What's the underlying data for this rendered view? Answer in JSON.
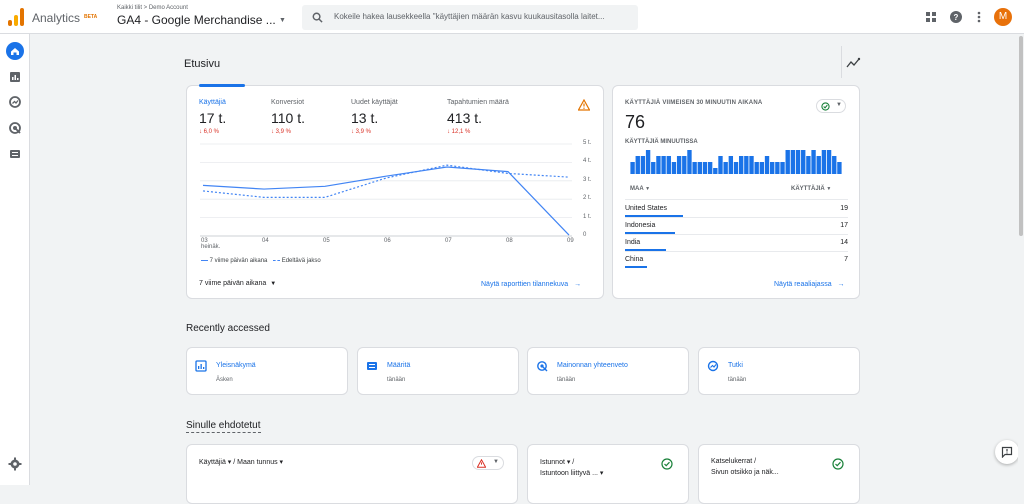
{
  "header": {
    "app_name": "Analytics",
    "beta": "BETA",
    "breadcrumb": "Kaikki tilit > Demo Account",
    "property": "GA4 - Google Merchandise ...",
    "search_placeholder": "Kokeile hakea lausekkeella \"käyttäjien määrän kasvu kuukausitasolla laitet...",
    "avatar_letter": "M"
  },
  "page_title": "Etusivu",
  "metrics": [
    {
      "label": "Käyttäjiä",
      "value": "17 t.",
      "change": "↓ 6,0 %"
    },
    {
      "label": "Konversiot",
      "value": "110 t.",
      "change": "↓ 3,9 %"
    },
    {
      "label": "Uudet käyttäjät",
      "value": "13 t.",
      "change": "↓ 3,9 %"
    },
    {
      "label": "Tapahtumien määrä",
      "value": "413 t.",
      "change": "↓ 12,1 %"
    }
  ],
  "chart_data": {
    "type": "line",
    "x": [
      "03 heinäk.",
      "04",
      "05",
      "06",
      "07",
      "08",
      "09"
    ],
    "x_labels": [
      "03",
      "04",
      "05",
      "06",
      "07",
      "08",
      "09"
    ],
    "x_sublabel": "heinäk.",
    "y_ticks": [
      "5 t.",
      "4 t.",
      "3 t.",
      "2 t.",
      "1 t.",
      "0"
    ],
    "ylim": [
      0,
      5000
    ],
    "series": [
      {
        "name": "7 viime päivän aikana",
        "values": [
          2750,
          2550,
          2700,
          3250,
          3750,
          3500,
          50
        ],
        "style": "solid",
        "color": "#4285f4"
      },
      {
        "name": "Edeltävä jakso",
        "values": [
          2450,
          2100,
          2100,
          3150,
          3850,
          3400,
          3200
        ],
        "style": "dashed",
        "color": "#4285f4"
      }
    ],
    "grid": true,
    "legend": "bottom-left"
  },
  "chart_legend": {
    "current": "7 viime päivän aikana",
    "previous": "Edeltävä jakso"
  },
  "date_range": "7 viime päivän aikana",
  "report_link": "Näytä raporttien tilannekuva",
  "realtime": {
    "title": "KÄYTTÄJIÄ VIIMEISEN 30 MINUUTIN AIKANA",
    "value": "76",
    "per_minute_label": "KÄYTTÄJIÄ MINUUTISSA",
    "per_minute_values": [
      2,
      3,
      3,
      4,
      2,
      3,
      3,
      3,
      2,
      3,
      3,
      4,
      2,
      2,
      2,
      2,
      1,
      3,
      2,
      3,
      2,
      3,
      3,
      3,
      2,
      2,
      3,
      2,
      2,
      2,
      4,
      4,
      4,
      4,
      3,
      4,
      3,
      4,
      4,
      3,
      2
    ],
    "col_country": "MAA",
    "col_users": "KÄYTTÄJIÄ",
    "rows": [
      {
        "country": "United States",
        "users": "19",
        "share": 0.32
      },
      {
        "country": "Indonesia",
        "users": "17",
        "share": 0.28
      },
      {
        "country": "India",
        "users": "14",
        "share": 0.23
      },
      {
        "country": "China",
        "users": "7",
        "share": 0.12
      }
    ],
    "link": "Näytä reaaliajassa"
  },
  "recent": {
    "title": "Recently accessed",
    "tiles": [
      {
        "title": "Yleisnäkymä",
        "sub": "Äsken"
      },
      {
        "title": "Määritä",
        "sub": "tänään"
      },
      {
        "title": "Mainonnan yhteenveto",
        "sub": "tänään"
      },
      {
        "title": "Tutki",
        "sub": "tänään"
      }
    ]
  },
  "suggested": {
    "title": "Sinulle ehdotetut",
    "cards": [
      {
        "title": "Käyttäjiä ▾ / Maan tunnus ▾"
      },
      {
        "title": "Istunnot ▾ /",
        "title2": "Istuntoon liittyvä ... ▾"
      },
      {
        "title": "Katselukerrat /",
        "title2": "Sivun otsikko ja näk..."
      }
    ]
  }
}
